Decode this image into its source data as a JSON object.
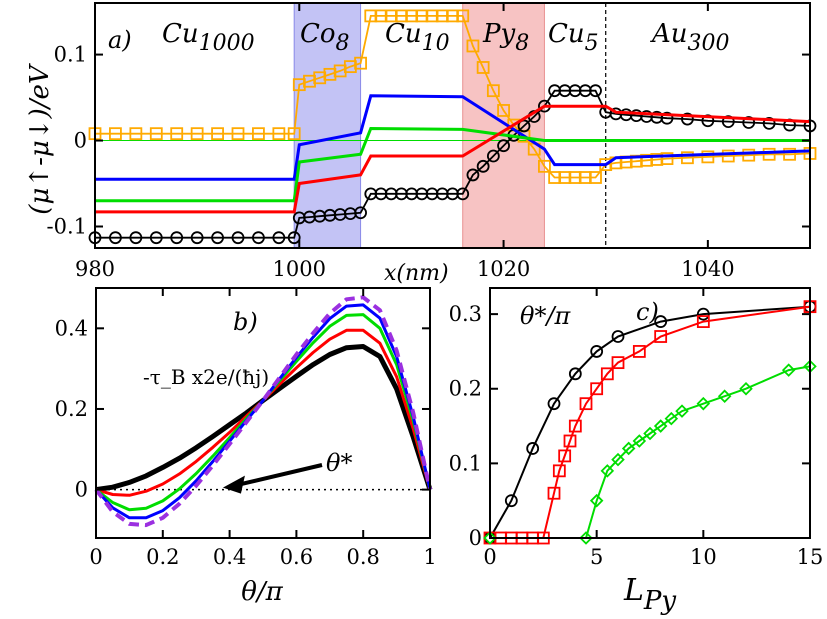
{
  "chart_data": [
    {
      "panel": "a)",
      "type": "line",
      "xlabel": "x(nm)",
      "ylabel": "(μ↑-μ↓)/eV",
      "xlim": [
        980,
        1050
      ],
      "ylim": [
        -0.125,
        0.16
      ],
      "xticks": [
        980,
        1000,
        1020,
        1040
      ],
      "yticks": [
        -0.1,
        0,
        0.1
      ],
      "ytick_labels": [
        "-0.1",
        "0",
        "0.1"
      ],
      "regions": [
        {
          "label": "Cu",
          "sub": "1000",
          "x0": 980,
          "x1": 999.5,
          "color": "#ffffff"
        },
        {
          "label": "Co",
          "sub": "8",
          "x0": 999.5,
          "x1": 1006,
          "color": "#c3c3f5"
        },
        {
          "label": "Cu",
          "sub": "10",
          "x0": 1006,
          "x1": 1016,
          "color": "#ffffff"
        },
        {
          "label": "Py",
          "sub": "8",
          "x0": 1016,
          "x1": 1024,
          "color": "#f7c3c3"
        },
        {
          "label": "Cu",
          "sub": "5",
          "x0": 1024,
          "x1": 1030,
          "color": "#ffffff"
        },
        {
          "label": "Au",
          "sub": "300",
          "x0": 1030,
          "x1": 1050,
          "color": "#ffffff"
        }
      ],
      "dashed_x": 1030,
      "series": [
        {
          "color": "#ffaa00",
          "marker": "square",
          "x": [
            980,
            982,
            984,
            986,
            988,
            990,
            992,
            994,
            996,
            998,
            999.5,
            1000,
            1001,
            1002,
            1003,
            1004,
            1005,
            1006,
            1007,
            1008,
            1009,
            1010,
            1011,
            1012,
            1013,
            1014,
            1015,
            1016,
            1017,
            1018,
            1019,
            1020,
            1021,
            1022,
            1023,
            1024,
            1025,
            1026,
            1027,
            1028,
            1029,
            1030,
            1031,
            1032,
            1033,
            1034,
            1035,
            1036,
            1038,
            1040,
            1042,
            1044,
            1046,
            1048,
            1050
          ],
          "values": [
            0.008,
            0.008,
            0.008,
            0.008,
            0.008,
            0.008,
            0.008,
            0.008,
            0.008,
            0.008,
            0.008,
            0.065,
            0.069,
            0.073,
            0.077,
            0.081,
            0.086,
            0.09,
            0.145,
            0.145,
            0.145,
            0.145,
            0.145,
            0.145,
            0.145,
            0.145,
            0.145,
            0.145,
            0.11,
            0.085,
            0.058,
            0.035,
            0.018,
            0.005,
            -0.01,
            -0.03,
            -0.043,
            -0.043,
            -0.043,
            -0.043,
            -0.043,
            -0.028,
            -0.026,
            -0.025,
            -0.024,
            -0.023,
            -0.022,
            -0.021,
            -0.02,
            -0.019,
            -0.018,
            -0.017,
            -0.016,
            -0.016,
            -0.015
          ]
        },
        {
          "color": "#000000",
          "marker": "circle",
          "x": [
            980,
            982,
            984,
            986,
            988,
            990,
            992,
            994,
            996,
            998,
            999.5,
            1000,
            1001,
            1002,
            1003,
            1004,
            1005,
            1006,
            1007,
            1008,
            1009,
            1010,
            1011,
            1012,
            1013,
            1014,
            1015,
            1016,
            1017,
            1018,
            1019,
            1020,
            1021,
            1022,
            1023,
            1024,
            1025,
            1026,
            1027,
            1028,
            1029,
            1030,
            1031,
            1032,
            1033,
            1034,
            1035,
            1036,
            1038,
            1040,
            1042,
            1044,
            1046,
            1048,
            1050
          ],
          "values": [
            -0.113,
            -0.113,
            -0.113,
            -0.113,
            -0.113,
            -0.113,
            -0.113,
            -0.113,
            -0.113,
            -0.113,
            -0.113,
            -0.09,
            -0.089,
            -0.088,
            -0.087,
            -0.086,
            -0.085,
            -0.084,
            -0.062,
            -0.062,
            -0.062,
            -0.062,
            -0.062,
            -0.062,
            -0.062,
            -0.062,
            -0.062,
            -0.062,
            -0.04,
            -0.03,
            -0.018,
            -0.006,
            0.006,
            0.017,
            0.028,
            0.04,
            0.058,
            0.058,
            0.058,
            0.058,
            0.058,
            0.033,
            0.031,
            0.03,
            0.029,
            0.028,
            0.027,
            0.026,
            0.025,
            0.023,
            0.022,
            0.021,
            0.02,
            0.018,
            0.017
          ]
        },
        {
          "color": "#0000ff",
          "marker": "none",
          "x": [
            980,
            999.5,
            1000,
            1006,
            1007,
            1016,
            1024,
            1025,
            1030,
            1031,
            1050
          ],
          "values": [
            -0.045,
            -0.045,
            -0.005,
            0.009,
            0.052,
            0.051,
            -0.01,
            -0.028,
            -0.028,
            -0.02,
            -0.012
          ]
        },
        {
          "color": "#00dd00",
          "marker": "none",
          "x": [
            980,
            999.5,
            1000,
            1006,
            1007,
            1016,
            1024,
            1030,
            1031,
            1050
          ],
          "values": [
            -0.07,
            -0.07,
            -0.025,
            -0.016,
            0.014,
            0.013,
            0.0,
            0.0,
            0.0,
            0.0
          ]
        },
        {
          "color": "#ff0000",
          "marker": "none",
          "x": [
            980,
            999.5,
            1000,
            1006,
            1007,
            1016,
            1024,
            1025,
            1030,
            1031,
            1050
          ],
          "values": [
            -0.083,
            -0.083,
            -0.05,
            -0.04,
            -0.018,
            -0.018,
            0.04,
            0.04,
            0.04,
            0.033,
            0.022
          ]
        }
      ]
    },
    {
      "panel": "b)",
      "type": "line",
      "xlabel": "θ/π",
      "ylabel": "-τ_B x2e/(ħj)",
      "xlim": [
        0,
        1
      ],
      "ylim": [
        -0.12,
        0.5
      ],
      "xticks": [
        0,
        0.2,
        0.4,
        0.6,
        0.8,
        1
      ],
      "yticks": [
        0,
        0.2,
        0.4
      ],
      "annotation": "θ*",
      "series": [
        {
          "color": "#000000",
          "dash": "solid",
          "width": 5,
          "x": [
            0,
            0.05,
            0.1,
            0.15,
            0.2,
            0.25,
            0.3,
            0.35,
            0.4,
            0.45,
            0.5,
            0.55,
            0.6,
            0.65,
            0.7,
            0.75,
            0.8,
            0.85,
            0.9,
            0.95,
            1
          ],
          "values": [
            0,
            0.006,
            0.018,
            0.034,
            0.055,
            0.078,
            0.104,
            0.132,
            0.161,
            0.19,
            0.221,
            0.251,
            0.281,
            0.31,
            0.335,
            0.352,
            0.355,
            0.33,
            0.25,
            0.13,
            0
          ]
        },
        {
          "color": "#ff0000",
          "dash": "solid",
          "width": 3,
          "x": [
            0,
            0.05,
            0.1,
            0.15,
            0.2,
            0.25,
            0.3,
            0.35,
            0.4,
            0.45,
            0.5,
            0.55,
            0.6,
            0.65,
            0.7,
            0.75,
            0.8,
            0.85,
            0.9,
            0.95,
            1
          ],
          "values": [
            0,
            -0.012,
            -0.014,
            -0.004,
            0.014,
            0.039,
            0.07,
            0.105,
            0.142,
            0.182,
            0.221,
            0.262,
            0.302,
            0.34,
            0.373,
            0.395,
            0.395,
            0.363,
            0.28,
            0.15,
            0
          ]
        },
        {
          "color": "#00dd00",
          "dash": "solid",
          "width": 3,
          "x": [
            0,
            0.05,
            0.1,
            0.15,
            0.2,
            0.25,
            0.3,
            0.35,
            0.4,
            0.45,
            0.5,
            0.55,
            0.6,
            0.65,
            0.7,
            0.75,
            0.8,
            0.85,
            0.9,
            0.95,
            1
          ],
          "values": [
            0,
            -0.032,
            -0.05,
            -0.046,
            -0.028,
            0.002,
            0.04,
            0.083,
            0.129,
            0.176,
            0.221,
            0.27,
            0.318,
            0.364,
            0.405,
            0.432,
            0.434,
            0.4,
            0.31,
            0.17,
            0
          ]
        },
        {
          "color": "#0000ff",
          "dash": "solid",
          "width": 3,
          "x": [
            0,
            0.05,
            0.1,
            0.15,
            0.2,
            0.25,
            0.3,
            0.35,
            0.4,
            0.45,
            0.5,
            0.55,
            0.6,
            0.65,
            0.7,
            0.75,
            0.8,
            0.85,
            0.9,
            0.95,
            1
          ],
          "values": [
            0,
            -0.045,
            -0.07,
            -0.07,
            -0.052,
            -0.02,
            0.022,
            0.07,
            0.12,
            0.171,
            0.221,
            0.275,
            0.328,
            0.378,
            0.424,
            0.455,
            0.458,
            0.425,
            0.33,
            0.18,
            0
          ]
        },
        {
          "color": "#9b30e0",
          "dash": "dashed",
          "width": 4,
          "x": [
            0,
            0.05,
            0.1,
            0.15,
            0.2,
            0.25,
            0.3,
            0.35,
            0.4,
            0.45,
            0.5,
            0.55,
            0.6,
            0.65,
            0.7,
            0.75,
            0.8,
            0.85,
            0.9,
            0.95,
            1
          ],
          "values": [
            0,
            -0.055,
            -0.085,
            -0.088,
            -0.07,
            -0.035,
            0.01,
            0.06,
            0.113,
            0.167,
            0.221,
            0.278,
            0.335,
            0.388,
            0.437,
            0.472,
            0.477,
            0.445,
            0.345,
            0.19,
            0
          ]
        }
      ]
    },
    {
      "panel": "c)",
      "type": "line",
      "xlabel": "L_Py",
      "ylabel": "θ*/π",
      "xlim": [
        0,
        15
      ],
      "ylim": [
        0,
        0.335
      ],
      "xticks": [
        0,
        5,
        10,
        15
      ],
      "yticks": [
        0,
        0.1,
        0.2,
        0.3
      ],
      "series": [
        {
          "color": "#000000",
          "marker": "circle",
          "x": [
            0,
            1,
            2,
            3,
            4,
            5,
            6,
            8,
            10,
            15
          ],
          "values": [
            0,
            0.05,
            0.12,
            0.18,
            0.22,
            0.25,
            0.27,
            0.29,
            0.3,
            0.31
          ]
        },
        {
          "color": "#ff0000",
          "marker": "square",
          "x": [
            0,
            0.5,
            1,
            1.5,
            2,
            2.5,
            3,
            3.25,
            3.5,
            3.75,
            4,
            4.5,
            5,
            5.5,
            6,
            7,
            8,
            10,
            15
          ],
          "values": [
            0,
            0,
            0,
            0,
            0,
            0,
            0.06,
            0.09,
            0.11,
            0.13,
            0.15,
            0.18,
            0.2,
            0.22,
            0.235,
            0.25,
            0.27,
            0.29,
            0.31
          ]
        },
        {
          "color": "#00dd00",
          "marker": "diamond",
          "x": [
            0,
            4.5,
            5,
            5.5,
            6,
            6.5,
            7,
            7.5,
            8,
            8.5,
            9,
            10,
            11,
            12,
            14,
            15
          ],
          "values": [
            0,
            0,
            0.05,
            0.09,
            0.105,
            0.12,
            0.13,
            0.14,
            0.15,
            0.16,
            0.17,
            0.18,
            0.19,
            0.2,
            0.225,
            0.23
          ]
        }
      ]
    }
  ]
}
